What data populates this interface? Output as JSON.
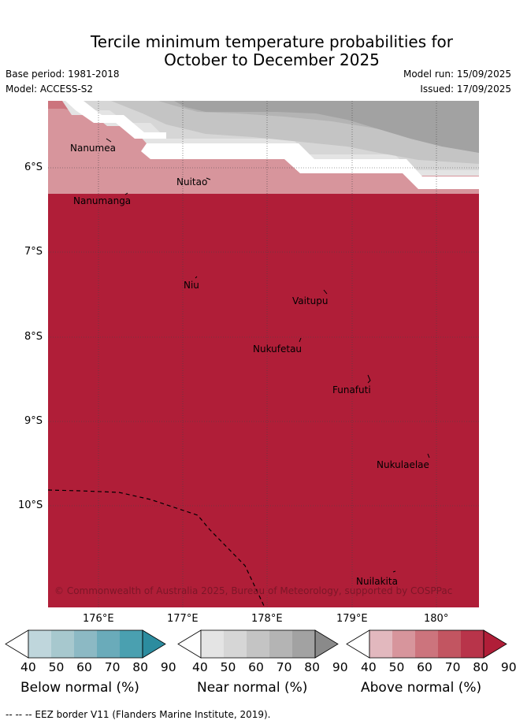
{
  "title_line1": "Tercile minimum temperature probabilities for",
  "title_line2": "October to December 2025",
  "base_period": "Base period: 1981-2018",
  "model": "Model: ACCESS-S2",
  "model_run": "Model run: 15/09/2025",
  "issued": "Issued: 17/09/2025",
  "copyright": "© Commonwealth of Australia 2025, Bureau of Meteorology, supported by COSPPac",
  "lat_labels": [
    "6°S",
    "7°S",
    "8°S",
    "9°S",
    "10°S"
  ],
  "lon_labels": [
    "176°E",
    "177°E",
    "178°E",
    "179°E",
    "180°"
  ],
  "places": [
    "Nanumea",
    "Nuitao",
    "Nanumanga",
    "Niu",
    "Vaitupu",
    "Nukufetau",
    "Funafuti",
    "Nukulaelae",
    "Nuilakita"
  ],
  "colorbars": [
    {
      "label": "Below normal (%)",
      "ticks": [
        "40",
        "50",
        "60",
        "70",
        "80",
        "90"
      ],
      "colors": [
        "#ffffff",
        "#bfd6dc",
        "#a7c8ce",
        "#8cb9c4",
        "#6aabba",
        "#4aa0b0",
        "#2c8c9f"
      ]
    },
    {
      "label": "Near normal (%)",
      "ticks": [
        "40",
        "50",
        "60",
        "70",
        "80",
        "90"
      ],
      "colors": [
        "#ffffff",
        "#e4e4e4",
        "#d6d6d6",
        "#c4c4c4",
        "#b4b4b4",
        "#a2a2a2",
        "#8a8a8a"
      ]
    },
    {
      "label": "Above normal (%)",
      "ticks": [
        "40",
        "50",
        "60",
        "70",
        "80",
        "90"
      ],
      "colors": [
        "#ffffff",
        "#e2b8be",
        "#d7959c",
        "#cc747d",
        "#c25561",
        "#b8344a",
        "#b01e38"
      ]
    }
  ],
  "footer": "--  --  -- EEZ border V11 (Flanders Marine Institute, 2019)."
}
